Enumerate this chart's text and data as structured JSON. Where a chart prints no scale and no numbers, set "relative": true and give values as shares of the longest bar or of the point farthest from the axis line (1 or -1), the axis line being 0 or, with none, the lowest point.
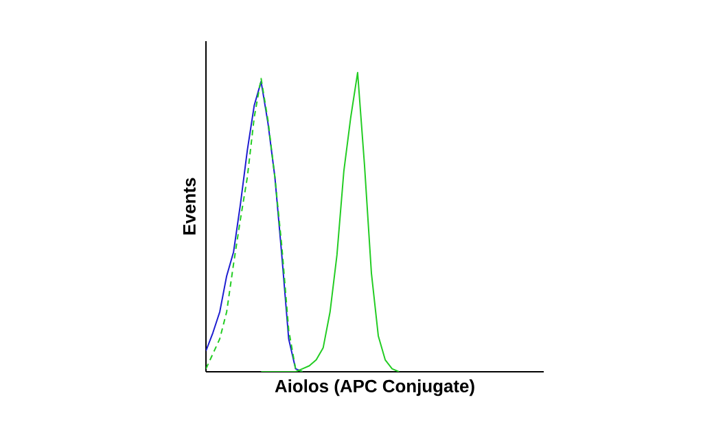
{
  "chart_data": {
    "type": "line",
    "relative": true,
    "xlabel": "Aiolos (APC Conjugate)",
    "ylabel": "Events",
    "categories": [
      null,
      null,
      null,
      null,
      null,
      null,
      null,
      null,
      null,
      null,
      null,
      null,
      null,
      null,
      null,
      null,
      null,
      null,
      null,
      null,
      null,
      null,
      null,
      null,
      null,
      null,
      null,
      null,
      null,
      null,
      null,
      null,
      null,
      null,
      null,
      null,
      null,
      null,
      null,
      null,
      null,
      null,
      null,
      null,
      null,
      null,
      null,
      null,
      null,
      null
    ],
    "series": [
      {
        "color": "#1c1cd0",
        "line_style": "solid",
        "values": [
          0.07,
          0.13,
          0.2,
          0.32,
          0.4,
          0.56,
          0.74,
          0.89,
          0.97,
          0.83,
          0.65,
          0.39,
          0.11,
          0.01,
          0,
          null,
          null,
          null,
          null,
          null,
          null,
          null,
          null,
          null,
          null,
          null,
          null,
          null,
          null,
          null,
          null,
          null,
          null,
          null,
          null,
          null,
          null,
          null,
          null,
          null,
          null,
          null,
          null,
          null,
          null,
          null,
          null,
          null,
          null,
          null
        ]
      },
      {
        "color": "#22cc22",
        "line_style": "dashed",
        "values": [
          0.01,
          0.06,
          0.11,
          0.2,
          0.36,
          0.51,
          0.65,
          0.85,
          0.98,
          0.84,
          0.65,
          0.42,
          0.14,
          0.01,
          0,
          null,
          null,
          null,
          null,
          null,
          null,
          null,
          null,
          null,
          null,
          null,
          null,
          null,
          null,
          null,
          null,
          null,
          null,
          null,
          null,
          null,
          null,
          null,
          null,
          null,
          null,
          null,
          null,
          null,
          null,
          null,
          null,
          null,
          null,
          null
        ]
      },
      {
        "color": "#22cc22",
        "line_style": "solid",
        "values": [
          null,
          null,
          null,
          null,
          null,
          null,
          null,
          null,
          0,
          0,
          0,
          0,
          0,
          0,
          0.01,
          0.02,
          0.04,
          0.08,
          0.2,
          0.39,
          0.67,
          0.85,
          1.0,
          0.69,
          0.33,
          0.12,
          0.04,
          0.01,
          0,
          null,
          null,
          null,
          null,
          null,
          null,
          null,
          null,
          null,
          null,
          null,
          null,
          null,
          null,
          null,
          null,
          null,
          null,
          null,
          null,
          null
        ]
      }
    ]
  }
}
